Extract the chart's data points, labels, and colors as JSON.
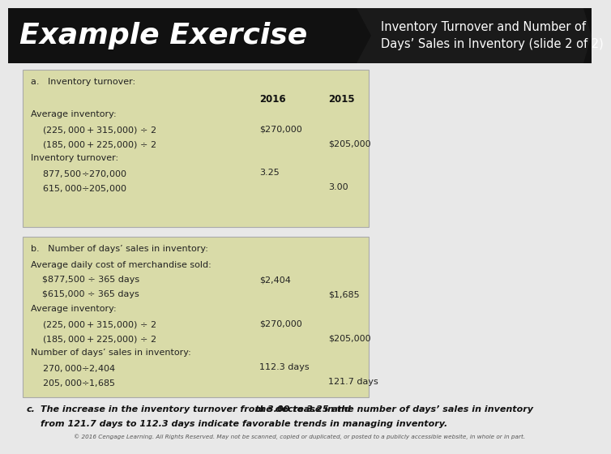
{
  "title_left": "Example Exercise",
  "title_right": "Inventory Turnover and Number of\nDays’ Sales in Inventory (slide 2 of 2)",
  "header_bg": "#111111",
  "box_bg": "#d9dba8",
  "box_border": "#aaaaaa",
  "content_bg": "#e8e8e8",
  "section_a_title": "a.   Inventory turnover:",
  "section_a_col_header": [
    "2016",
    "2015"
  ],
  "section_a_lines": [
    [
      "Average inventory:",
      "",
      ""
    ],
    [
      "    ($225,000 + $315,000) ÷ 2",
      "$270,000",
      ""
    ],
    [
      "    ($185,000 + $225,000) ÷ 2",
      "",
      "$205,000"
    ],
    [
      "Inventory turnover:",
      "",
      ""
    ],
    [
      "    $877,500 ÷ $270,000",
      "3.25",
      ""
    ],
    [
      "    $615,000 ÷ $205,000",
      "",
      "3.00"
    ]
  ],
  "section_b_title": "b.   Number of days’ sales in inventory:",
  "section_b_lines": [
    [
      "Average daily cost of merchandise sold:",
      "",
      ""
    ],
    [
      "    $877,500 ÷ 365 days",
      "$2,404",
      ""
    ],
    [
      "    $615,000 ÷ 365 days",
      "",
      "$1,685"
    ],
    [
      "Average inventory:",
      "",
      ""
    ],
    [
      "    ($225,000 + $315,000) ÷ 2",
      "$270,000",
      ""
    ],
    [
      "    ($185,000 + $225,000) ÷ 2",
      "",
      "$205,000"
    ],
    [
      "Number of days’ sales in inventory:",
      "",
      ""
    ],
    [
      "    $270,000 ÷ $2,404",
      "112.3 days",
      ""
    ],
    [
      "    $205,000 ÷ $1,685",
      "",
      "121.7 days"
    ]
  ],
  "section_c_label": "c.",
  "section_c_text1": "The increase in the inventory turnover from 3.00 to 3.25 and ",
  "section_c_bold": "the decrease in the number of days’ sales in inventory",
  "section_c_text2": "from 121.7 days to 112.3 days indicate favorable trends in managing inventory.",
  "footer": "© 2016 Cengage Learning. All Rights Reserved. May not be scanned, copied or duplicated, or posted to a publicly accessible website, in whole or in part."
}
